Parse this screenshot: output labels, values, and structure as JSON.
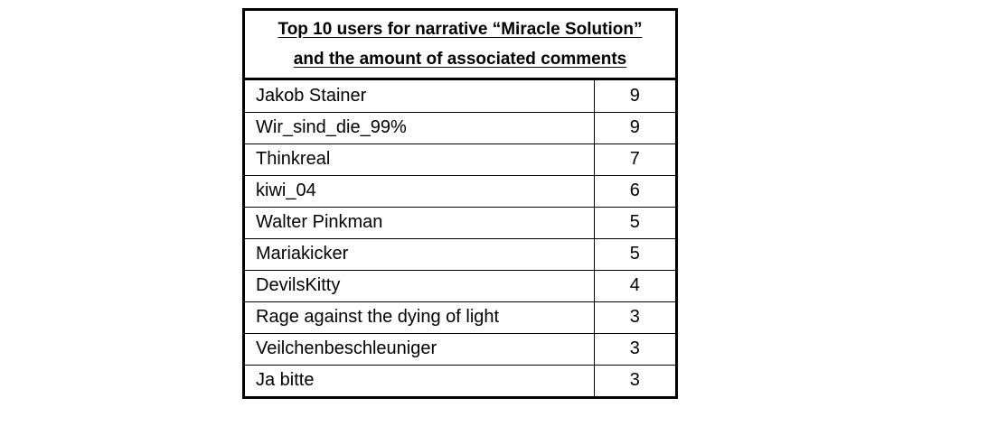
{
  "table": {
    "title_line1": "Top 10 users for narrative “Miracle Solution”",
    "title_line2": "and the amount of associated comments",
    "rows": [
      {
        "user": "Jakob Stainer",
        "comments": "9"
      },
      {
        "user": "Wir_sind_die_99%",
        "comments": "9"
      },
      {
        "user": "Thinkreal",
        "comments": "7"
      },
      {
        "user": "kiwi_04",
        "comments": "6"
      },
      {
        "user": "Walter Pinkman",
        "comments": "5"
      },
      {
        "user": "Mariakicker",
        "comments": "5"
      },
      {
        "user": "DevilsKitty",
        "comments": "4"
      },
      {
        "user": "Rage against the dying of light",
        "comments": "3"
      },
      {
        "user": "Veilchenbeschleuniger",
        "comments": "3"
      },
      {
        "user": "Ja bitte",
        "comments": "3"
      }
    ]
  }
}
